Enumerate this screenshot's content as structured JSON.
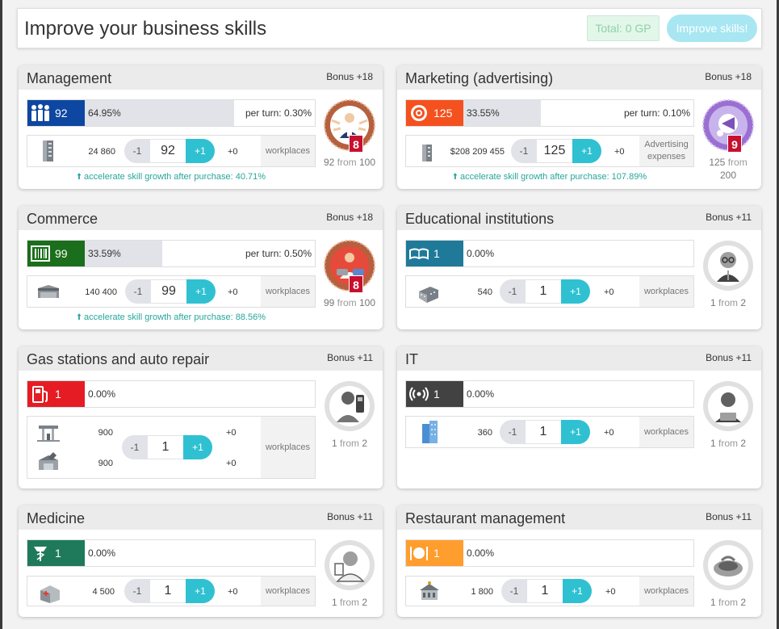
{
  "header": {
    "title": "Improve your business skills",
    "total": "Total: 0 GP",
    "improve_button": "Improve skills!"
  },
  "cards": [
    {
      "title": "Management",
      "bonus": "Bonus +18",
      "level": "92",
      "progress_pct": "64.95%",
      "progress_value": 0.6495,
      "per_turn": "per turn: 0.30%",
      "color": "#0d47a1",
      "resource": "24 860",
      "stepper": {
        "minus": "-1",
        "value": "92",
        "plus": "+1"
      },
      "delta": "+0",
      "unit": "workplaces",
      "accel": "accelerate skill growth after purchase: 40.71%",
      "from_value": "92",
      "from_word": "from",
      "from_max": "100",
      "badge": "8"
    },
    {
      "title": "Marketing (advertising)",
      "bonus": "Bonus +18",
      "level": "125",
      "progress_pct": "33.55%",
      "progress_value": 0.3355,
      "per_turn": "per turn: 0.10%",
      "color": "#f4511e",
      "resource": "$208 209 455",
      "stepper": {
        "minus": "-1",
        "value": "125",
        "plus": "+1"
      },
      "delta": "+0",
      "unit": "Advertising expenses",
      "accel": "accelerate skill growth after purchase: 107.89%",
      "from_value": "125",
      "from_word": "from",
      "from_max": "200",
      "badge": "9"
    },
    {
      "title": "Commerce",
      "bonus": "Bonus +18",
      "level": "99",
      "progress_pct": "33.59%",
      "progress_value": 0.3359,
      "per_turn": "per turn: 0.50%",
      "color": "#1b6e1b",
      "resource": "140 400",
      "stepper": {
        "minus": "-1",
        "value": "99",
        "plus": "+1"
      },
      "delta": "+0",
      "unit": "workplaces",
      "accel": "accelerate skill growth after purchase: 88.56%",
      "from_value": "99",
      "from_word": "from",
      "from_max": "100",
      "badge": "8"
    },
    {
      "title": "Educational institutions",
      "bonus": "Bonus +11",
      "level": "1",
      "progress_pct": "0.00%",
      "progress_value": 0,
      "color": "#1f7a99",
      "resource": "540",
      "stepper": {
        "minus": "-1",
        "value": "1",
        "plus": "+1"
      },
      "delta": "+0",
      "unit": "workplaces",
      "from_value": "1",
      "from_word": "from",
      "from_max": "2"
    },
    {
      "title": "Gas stations and auto repair",
      "bonus": "Bonus +11",
      "level": "1",
      "progress_pct": "0.00%",
      "progress_value": 0,
      "color": "#e51c23",
      "resource": "900",
      "resource2": "900",
      "stepper": {
        "minus": "-1",
        "value": "1",
        "plus": "+1"
      },
      "delta": "+0",
      "delta2": "+0",
      "unit": "workplaces",
      "from_value": "1",
      "from_word": "from",
      "from_max": "2"
    },
    {
      "title": "IT",
      "bonus": "Bonus +11",
      "level": "1",
      "progress_pct": "0.00%",
      "progress_value": 0,
      "color": "#424242",
      "resource": "360",
      "stepper": {
        "minus": "-1",
        "value": "1",
        "plus": "+1"
      },
      "delta": "+0",
      "unit": "workplaces",
      "from_value": "1",
      "from_word": "from",
      "from_max": "2"
    },
    {
      "title": "Medicine",
      "bonus": "Bonus +11",
      "level": "1",
      "progress_pct": "0.00%",
      "progress_value": 0,
      "color": "#1e7a5a",
      "resource": "4 500",
      "stepper": {
        "minus": "-1",
        "value": "1",
        "plus": "+1"
      },
      "delta": "+0",
      "unit": "workplaces",
      "from_value": "1",
      "from_word": "from",
      "from_max": "2"
    },
    {
      "title": "Restaurant management",
      "bonus": "Bonus +11",
      "level": "1",
      "progress_pct": "0.00%",
      "progress_value": 0,
      "color": "#ff9d2e",
      "resource": "1 800",
      "stepper": {
        "minus": "-1",
        "value": "1",
        "plus": "+1"
      },
      "delta": "+0",
      "unit": "workplaces",
      "from_value": "1",
      "from_word": "from",
      "from_max": "2"
    }
  ]
}
